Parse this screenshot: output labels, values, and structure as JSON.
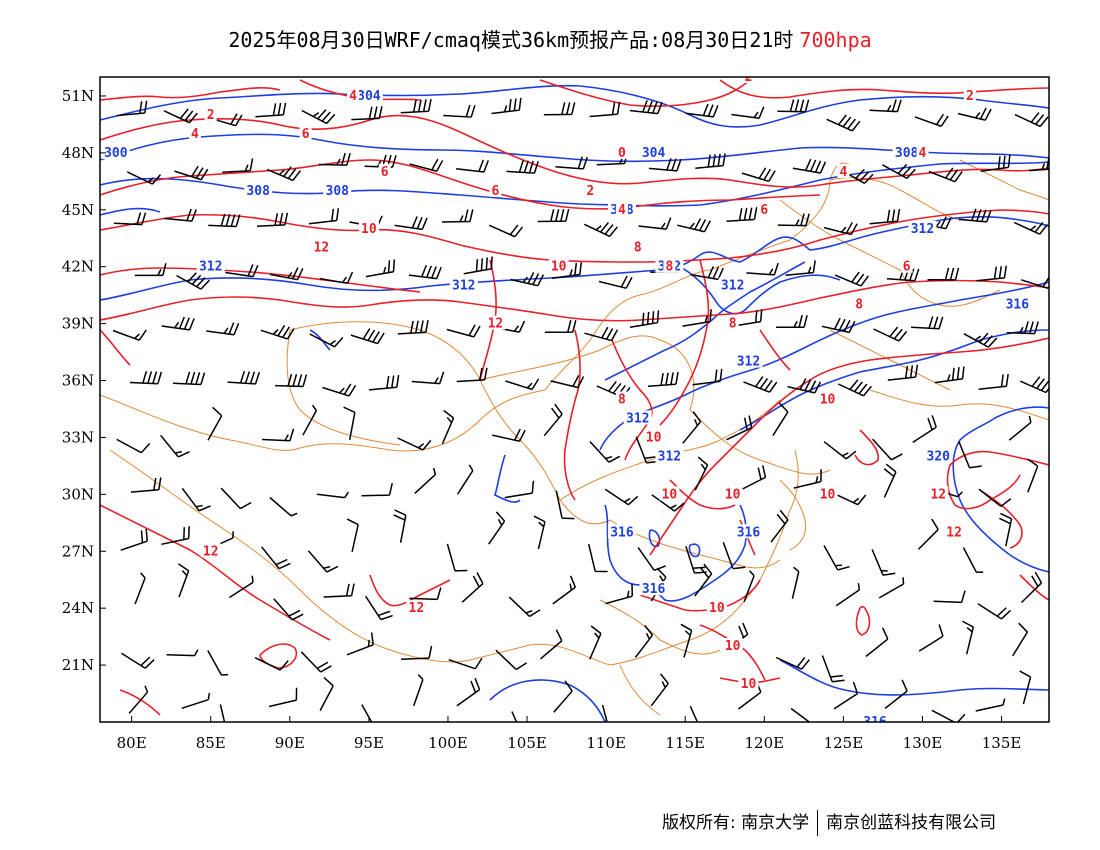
{
  "title": {
    "main": "2025年08月30日WRF/cmaq模式36km预报产品:08月30日21时",
    "level": "700hpa"
  },
  "colors": {
    "height_contour": "#1e3fe0",
    "temperature_contour": "#e8202a",
    "boundary": "#e08a3a",
    "wind_barb": "#000000"
  },
  "axes": {
    "lon_ticks": [
      "80E",
      "85E",
      "90E",
      "95E",
      "100E",
      "105E",
      "110E",
      "115E",
      "120E",
      "125E",
      "130E",
      "135E"
    ],
    "lat_ticks": [
      "51N",
      "48N",
      "45N",
      "42N",
      "39N",
      "36N",
      "33N",
      "30N",
      "27N",
      "24N",
      "21N"
    ],
    "lon_range": [
      78,
      138
    ],
    "lat_range": [
      18,
      52
    ]
  },
  "height_labels": [
    {
      "text": "304",
      "lon": 95,
      "lat": 51
    },
    {
      "text": "304",
      "lon": 113,
      "lat": 48
    },
    {
      "text": "308",
      "lon": 111,
      "lat": 45
    },
    {
      "text": "308",
      "lon": 93,
      "lat": 46
    },
    {
      "text": "308",
      "lon": 88,
      "lat": 46
    },
    {
      "text": "308",
      "lon": 129,
      "lat": 48
    },
    {
      "text": "300",
      "lon": 79,
      "lat": 48
    },
    {
      "text": "312",
      "lon": 85,
      "lat": 42
    },
    {
      "text": "312",
      "lon": 101,
      "lat": 41
    },
    {
      "text": "312",
      "lon": 114,
      "lat": 42
    },
    {
      "text": "312",
      "lon": 118,
      "lat": 41
    },
    {
      "text": "312",
      "lon": 119,
      "lat": 37
    },
    {
      "text": "312",
      "lon": 112,
      "lat": 34
    },
    {
      "text": "312",
      "lon": 114,
      "lat": 32
    },
    {
      "text": "312",
      "lon": 130,
      "lat": 44
    },
    {
      "text": "316",
      "lon": 136,
      "lat": 40
    },
    {
      "text": "316",
      "lon": 111,
      "lat": 28
    },
    {
      "text": "316",
      "lon": 119,
      "lat": 28
    },
    {
      "text": "316",
      "lon": 113,
      "lat": 25
    },
    {
      "text": "316",
      "lon": 127,
      "lat": 18
    },
    {
      "text": "320",
      "lon": 131,
      "lat": 32
    }
  ],
  "temperature_labels": [
    {
      "text": "4",
      "lon": 94,
      "lat": 51
    },
    {
      "text": "2",
      "lon": 85,
      "lat": 50
    },
    {
      "text": "4",
      "lon": 84,
      "lat": 49
    },
    {
      "text": "6",
      "lon": 91,
      "lat": 49
    },
    {
      "text": "6",
      "lon": 96,
      "lat": 47
    },
    {
      "text": "6",
      "lon": 103,
      "lat": 46
    },
    {
      "text": "0",
      "lon": 111,
      "lat": 48
    },
    {
      "text": "2",
      "lon": 109,
      "lat": 46
    },
    {
      "text": "4",
      "lon": 111,
      "lat": 45
    },
    {
      "text": "2",
      "lon": 119,
      "lat": 52
    },
    {
      "text": "2",
      "lon": 133,
      "lat": 51
    },
    {
      "text": "4",
      "lon": 130,
      "lat": 48
    },
    {
      "text": "4",
      "lon": 125,
      "lat": 47
    },
    {
      "text": "6",
      "lon": 120,
      "lat": 45
    },
    {
      "text": "6",
      "lon": 129,
      "lat": 42
    },
    {
      "text": "8",
      "lon": 126,
      "lat": 40
    },
    {
      "text": "8",
      "lon": 114,
      "lat": 42
    },
    {
      "text": "8",
      "lon": 112,
      "lat": 43
    },
    {
      "text": "8",
      "lon": 118,
      "lat": 39
    },
    {
      "text": "8",
      "lon": 111,
      "lat": 35
    },
    {
      "text": "10",
      "lon": 95,
      "lat": 44
    },
    {
      "text": "10",
      "lon": 107,
      "lat": 42
    },
    {
      "text": "10",
      "lon": 124,
      "lat": 35
    },
    {
      "text": "10",
      "lon": 113,
      "lat": 33
    },
    {
      "text": "10",
      "lon": 114,
      "lat": 30
    },
    {
      "text": "10",
      "lon": 118,
      "lat": 30
    },
    {
      "text": "10",
      "lon": 124,
      "lat": 30
    },
    {
      "text": "10",
      "lon": 117,
      "lat": 24
    },
    {
      "text": "10",
      "lon": 118,
      "lat": 22
    },
    {
      "text": "10",
      "lon": 119,
      "lat": 20
    },
    {
      "text": "12",
      "lon": 92,
      "lat": 43
    },
    {
      "text": "12",
      "lon": 103,
      "lat": 39
    },
    {
      "text": "12",
      "lon": 85,
      "lat": 27
    },
    {
      "text": "12",
      "lon": 98,
      "lat": 24
    },
    {
      "text": "12",
      "lon": 131,
      "lat": 30
    },
    {
      "text": "12",
      "lon": 132,
      "lat": 28
    }
  ],
  "footer": {
    "copyright": "版权所有: 南京大学",
    "company": "南京创蓝科技有限公司"
  }
}
